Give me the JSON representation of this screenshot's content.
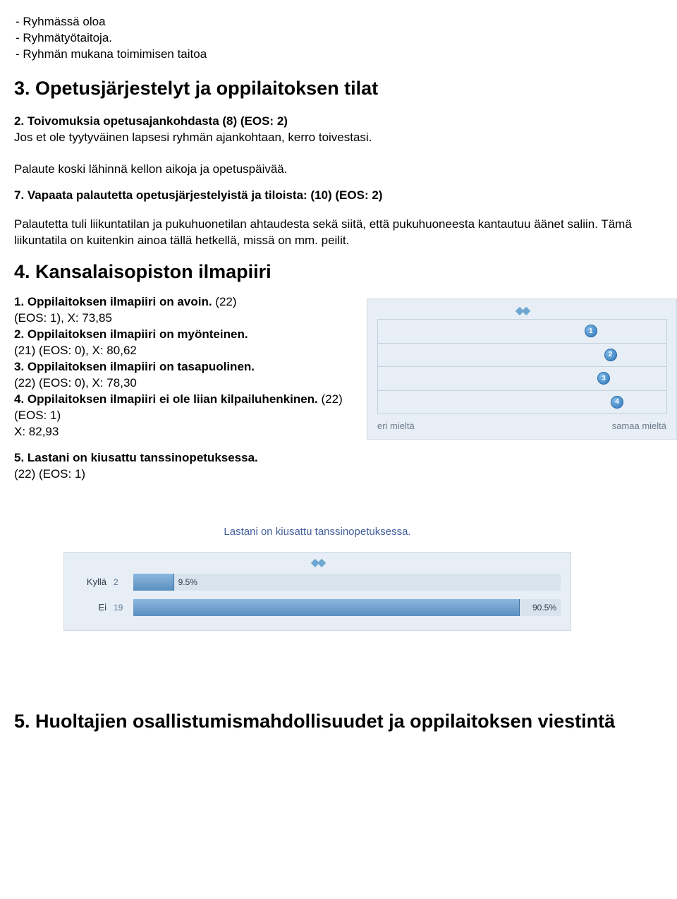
{
  "bullets": {
    "b1": "- Ryhmässä oloa",
    "b2": "- Ryhmätyötaitoja.",
    "b3": "- Ryhmän mukana toimimisen taitoa"
  },
  "sec3": {
    "heading": "3. Opetusjärjestelyt ja oppilaitoksen tilat",
    "q2_label": "2. Toivomuksia opetusajankohdasta (8) (EOS: 2)",
    "q2_desc": "Jos et ole tyytyväinen lapsesi ryhmän ajankohtaan, kerro toivestasi.",
    "q2_body": "Palaute koski lähinnä kellon aikoja ja opetuspäivää.",
    "q7_label": "7. Vapaata palautetta opetusjärjestelyistä ja tiloista: (10) (EOS: 2)",
    "q7_body": "Palautetta tuli liikuntatilan ja pukuhuonetilan ahtaudesta sekä siitä, että pukuhuoneesta kantautuu äänet saliin. Tämä liikuntatila on kuitenkin ainoa tällä hetkellä, missä on mm. peilit."
  },
  "sec4": {
    "heading": "4. Kansalaisopiston ilmapiiri",
    "items": [
      {
        "label": "1. Oppilaitoksen ilmapiiri on avoin.",
        "detail1": "(22)",
        "detail2": "(EOS: 1), X: 73,85",
        "x": 73.85
      },
      {
        "label": "2. Oppilaitoksen ilmapiiri on myönteinen.",
        "detail1": "(21) (EOS: 0), X: 80,62",
        "x": 80.62
      },
      {
        "label": "3. Oppilaitoksen ilmapiiri on tasapuolinen.",
        "detail1": "(22) (EOS: 0), X: 78,30",
        "x": 78.3
      },
      {
        "label": "4. Oppilaitoksen ilmapiiri ei ole liian kilpailuhenkinen.",
        "detail1": "(22) (EOS: 1)",
        "detail2": "X: 82,93",
        "x": 82.93
      }
    ],
    "chart": {
      "axis_left": "eri mieltä",
      "axis_right": "samaa mieltä",
      "bg": "#e7eef5",
      "bead_labels": [
        "1",
        "2",
        "3",
        "4"
      ],
      "bead_x": [
        73.85,
        80.62,
        78.3,
        82.93
      ]
    },
    "q5_label": "5. Lastani on kiusattu tanssinopetuksessa.",
    "q5_detail": "(22) (EOS: 1)"
  },
  "barchart": {
    "title": "Lastani on kiusattu tanssinopetuksessa.",
    "rows": [
      {
        "cat": "Kyllä",
        "count": "2",
        "pct": 9.5,
        "pct_label": "9.5%"
      },
      {
        "cat": "Ei",
        "count": "19",
        "pct": 90.5,
        "pct_label": "90.5%"
      }
    ],
    "fill_color": "#6a9fcf",
    "track_color": "#d8e3ee"
  },
  "sec5": {
    "heading": "5. Huoltajien osallistumismahdollisuudet ja oppilaitoksen viestintä"
  }
}
